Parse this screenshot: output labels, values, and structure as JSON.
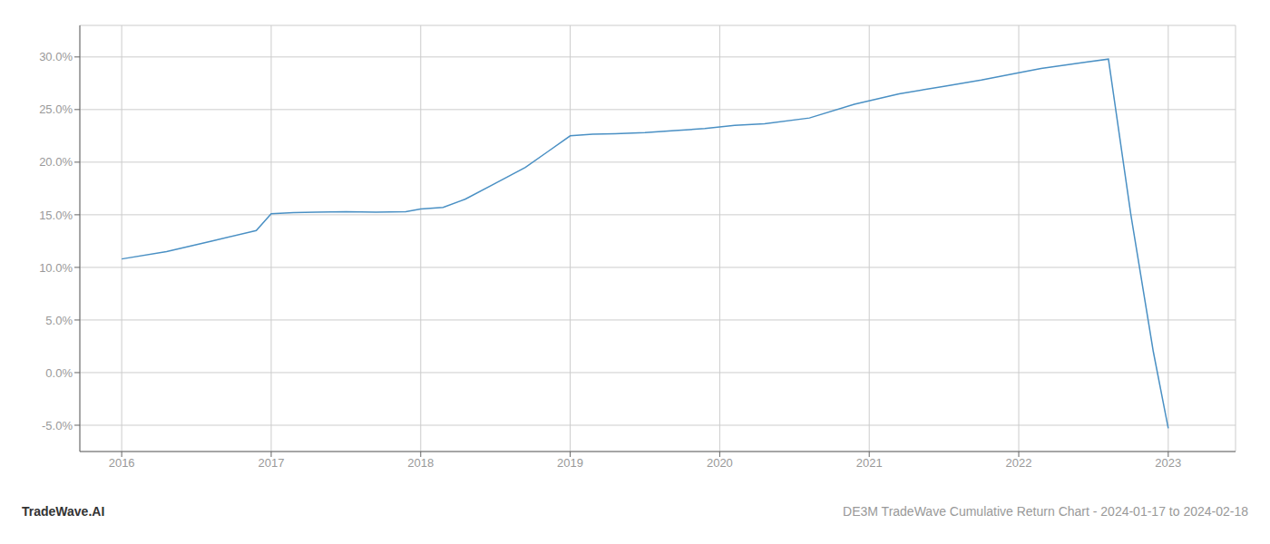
{
  "chart_data": {
    "type": "line",
    "title": "DE3M TradeWave Cumulative Return Chart - 2024-01-17 to 2024-02-18",
    "annotations": [
      "TradeWave.AI"
    ],
    "x": [
      2016.0,
      2016.3,
      2016.6,
      2016.9,
      2017.0,
      2017.15,
      2017.3,
      2017.5,
      2017.7,
      2017.9,
      2018.0,
      2018.15,
      2018.3,
      2018.5,
      2018.7,
      2018.85,
      2019.0,
      2019.15,
      2019.3,
      2019.5,
      2019.7,
      2019.9,
      2020.1,
      2020.3,
      2020.6,
      2020.9,
      2021.2,
      2021.5,
      2021.75,
      2022.0,
      2022.15,
      2022.3,
      2022.45,
      2022.6,
      2022.75,
      2022.9,
      2023.0
    ],
    "values": [
      10.8,
      11.5,
      12.5,
      13.5,
      15.1,
      15.2,
      15.25,
      15.3,
      15.25,
      15.3,
      15.55,
      15.7,
      16.5,
      18.0,
      19.5,
      21.0,
      22.5,
      22.65,
      22.7,
      22.8,
      23.0,
      23.2,
      23.5,
      23.65,
      24.2,
      25.5,
      26.5,
      27.2,
      27.8,
      28.5,
      28.9,
      29.2,
      29.5,
      29.8,
      15.0,
      2.0,
      -5.3
    ],
    "color": "#4a90c4",
    "xlim": [
      2015.72,
      2023.45
    ],
    "ylim": [
      -7.5,
      33.0
    ],
    "xticks": [
      2016,
      2017,
      2018,
      2019,
      2020,
      2021,
      2022,
      2023
    ],
    "yticks": [
      {
        "value": -5.0,
        "label": "-5.0%"
      },
      {
        "value": 0.0,
        "label": "0.0%"
      },
      {
        "value": 5.0,
        "label": "5.0%"
      },
      {
        "value": 10.0,
        "label": "10.0%"
      },
      {
        "value": 15.0,
        "label": "15.0%"
      },
      {
        "value": 20.0,
        "label": "20.0%"
      },
      {
        "value": 25.0,
        "label": "25.0%"
      },
      {
        "value": 30.0,
        "label": "30.0%"
      }
    ],
    "grid": true
  }
}
